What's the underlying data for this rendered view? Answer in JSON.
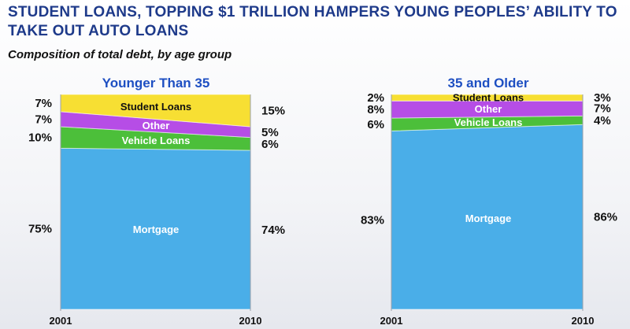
{
  "header": {
    "title": "STUDENT LOANS, TOPPING $1 TRILLION HAMPERS YOUNG PEOPLES’ ABILITY TO TAKE OUT AUTO LOANS",
    "subtitle": "Composition of total debt, by age group"
  },
  "chart_data": [
    {
      "type": "area",
      "stacked": true,
      "title": "Younger Than 35",
      "x": [
        "2001",
        "2010"
      ],
      "ylim": [
        0,
        100
      ],
      "series": [
        {
          "name": "Mortgage",
          "values": [
            75,
            74
          ],
          "color": "#4aaee8"
        },
        {
          "name": "Vehicle Loans",
          "values": [
            10,
            6
          ],
          "color": "#4cbf3a"
        },
        {
          "name": "Other",
          "values": [
            7,
            5
          ],
          "color": "#b64de6"
        },
        {
          "name": "Student Loans",
          "values": [
            7,
            15
          ],
          "color": "#f7df33"
        }
      ],
      "value_labels_left": [
        "7%",
        "7%",
        "10%",
        "75%"
      ],
      "value_labels_right": [
        "15%",
        "5%",
        "6%",
        "74%"
      ]
    },
    {
      "type": "area",
      "stacked": true,
      "title": "35 and Older",
      "x": [
        "2001",
        "2010"
      ],
      "ylim": [
        0,
        100
      ],
      "series": [
        {
          "name": "Mortgage",
          "values": [
            83,
            86
          ],
          "color": "#4aaee8"
        },
        {
          "name": "Vehicle Loans",
          "values": [
            6,
            4
          ],
          "color": "#4cbf3a"
        },
        {
          "name": "Other",
          "values": [
            8,
            7
          ],
          "color": "#b64de6"
        },
        {
          "name": "Student Loans",
          "values": [
            2,
            3
          ],
          "color": "#f7df33"
        }
      ],
      "value_labels_left": [
        "2%",
        "8%",
        "6%",
        "83%"
      ],
      "value_labels_right": [
        "3%",
        "7%",
        "4%",
        "86%"
      ]
    }
  ]
}
